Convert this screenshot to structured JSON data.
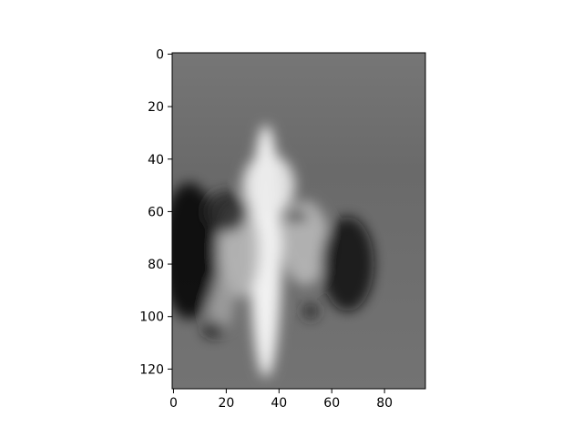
{
  "chart_data": {
    "type": "heatmap",
    "title": "",
    "xlabel": "",
    "ylabel": "",
    "colormap": "gray",
    "image_shape": [
      128,
      96
    ],
    "xlim": [
      -0.5,
      95.5
    ],
    "ylim": [
      127.5,
      -0.5
    ],
    "x_ticks": [
      0,
      20,
      40,
      60,
      80
    ],
    "y_ticks": [
      0,
      20,
      40,
      60,
      80,
      100,
      120
    ],
    "x_tick_labels": [
      "0",
      "20",
      "40",
      "60",
      "80"
    ],
    "y_tick_labels": [
      "0",
      "20",
      "40",
      "60",
      "80",
      "100",
      "120"
    ],
    "background_value": 0.5,
    "features": [
      {
        "kind": "bright",
        "cx": 35,
        "cy": 75,
        "rx": 6,
        "ry": 48,
        "value": 1.0
      },
      {
        "kind": "bright",
        "cx": 36,
        "cy": 50,
        "rx": 10,
        "ry": 12,
        "value": 0.92
      },
      {
        "kind": "bright",
        "cx": 25,
        "cy": 75,
        "rx": 8,
        "ry": 18,
        "value": 0.72
      },
      {
        "kind": "bright",
        "cx": 50,
        "cy": 72,
        "rx": 9,
        "ry": 16,
        "value": 0.72
      },
      {
        "kind": "bright",
        "cx": 18,
        "cy": 95,
        "rx": 5,
        "ry": 10,
        "value": 0.62
      },
      {
        "kind": "dark",
        "cx": 6,
        "cy": 75,
        "rx": 11,
        "ry": 26,
        "value": 0.02
      },
      {
        "kind": "dark",
        "cx": 66,
        "cy": 80,
        "rx": 10,
        "ry": 18,
        "value": 0.04
      },
      {
        "kind": "dark",
        "cx": 20,
        "cy": 60,
        "rx": 8,
        "ry": 8,
        "value": 0.15
      },
      {
        "kind": "dark",
        "cx": 15,
        "cy": 105,
        "rx": 4,
        "ry": 3,
        "value": 0.1
      },
      {
        "kind": "dark",
        "cx": 52,
        "cy": 98,
        "rx": 3,
        "ry": 3,
        "value": 0.15
      },
      {
        "kind": "dark",
        "cx": 47,
        "cy": 62,
        "rx": 4,
        "ry": 2,
        "value": 0.2
      }
    ]
  }
}
